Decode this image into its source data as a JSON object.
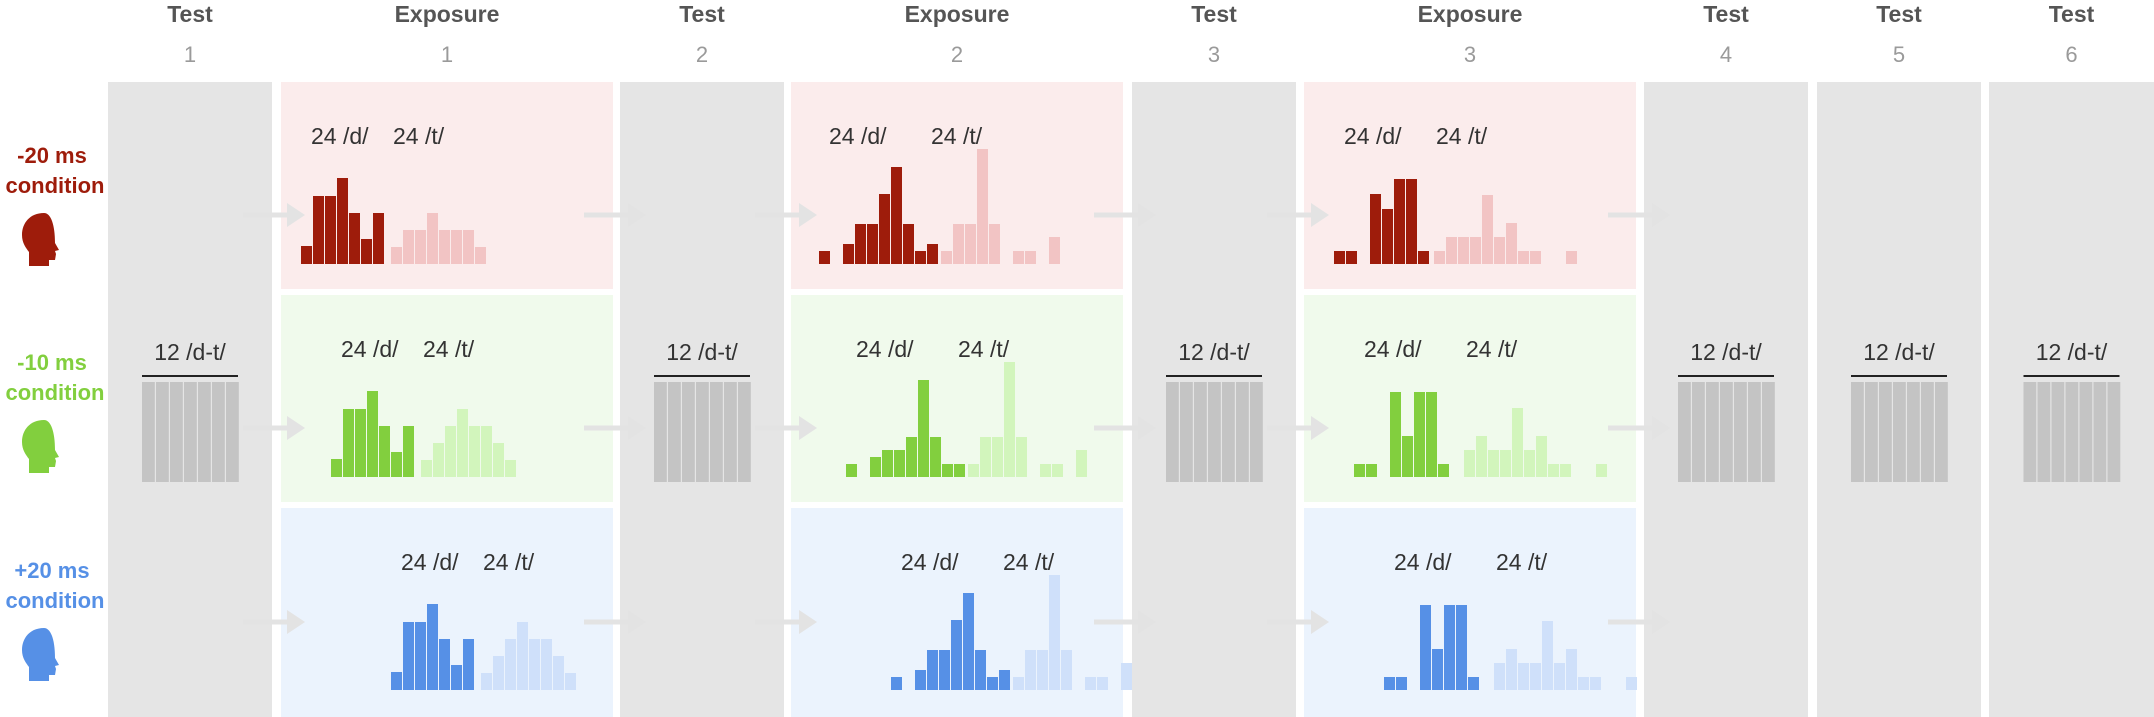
{
  "columns": [
    {
      "kind": "test",
      "title": "Test",
      "number": "1"
    },
    {
      "kind": "exposure",
      "title": "Exposure",
      "number": "1"
    },
    {
      "kind": "test",
      "title": "Test",
      "number": "2"
    },
    {
      "kind": "exposure",
      "title": "Exposure",
      "number": "2"
    },
    {
      "kind": "test",
      "title": "Test",
      "number": "3"
    },
    {
      "kind": "exposure",
      "title": "Exposure",
      "number": "3"
    },
    {
      "kind": "test",
      "title": "Test",
      "number": "4"
    },
    {
      "kind": "test",
      "title": "Test",
      "number": "5"
    },
    {
      "kind": "test",
      "title": "Test",
      "number": "6"
    }
  ],
  "conditions": [
    {
      "line1": "-20 ms",
      "line2": "condition",
      "color": "#9e1c0b",
      "light_color": "#f2c4c4",
      "panel_color": "#fbecec",
      "icon": "head-profile-icon"
    },
    {
      "line1": "-10 ms",
      "line2": "condition",
      "color": "#82cf3e",
      "light_color": "#d2f5bc",
      "panel_color": "#f0faec",
      "icon": "head-profile-icon"
    },
    {
      "line1": "+20 ms",
      "line2": "condition",
      "color": "#5690e6",
      "light_color": "#cfe0fa",
      "panel_color": "#ebf3fd",
      "icon": "head-profile-icon"
    }
  ],
  "test_block": {
    "label": "12 /d-t/",
    "trials": 12,
    "color": "#c4c4c4",
    "panel_color": "#e5e5e5"
  },
  "exposure_labels": {
    "d": "24 /d/",
    "t": "24 /t/"
  },
  "arrow_color": "#e3e3e3"
}
